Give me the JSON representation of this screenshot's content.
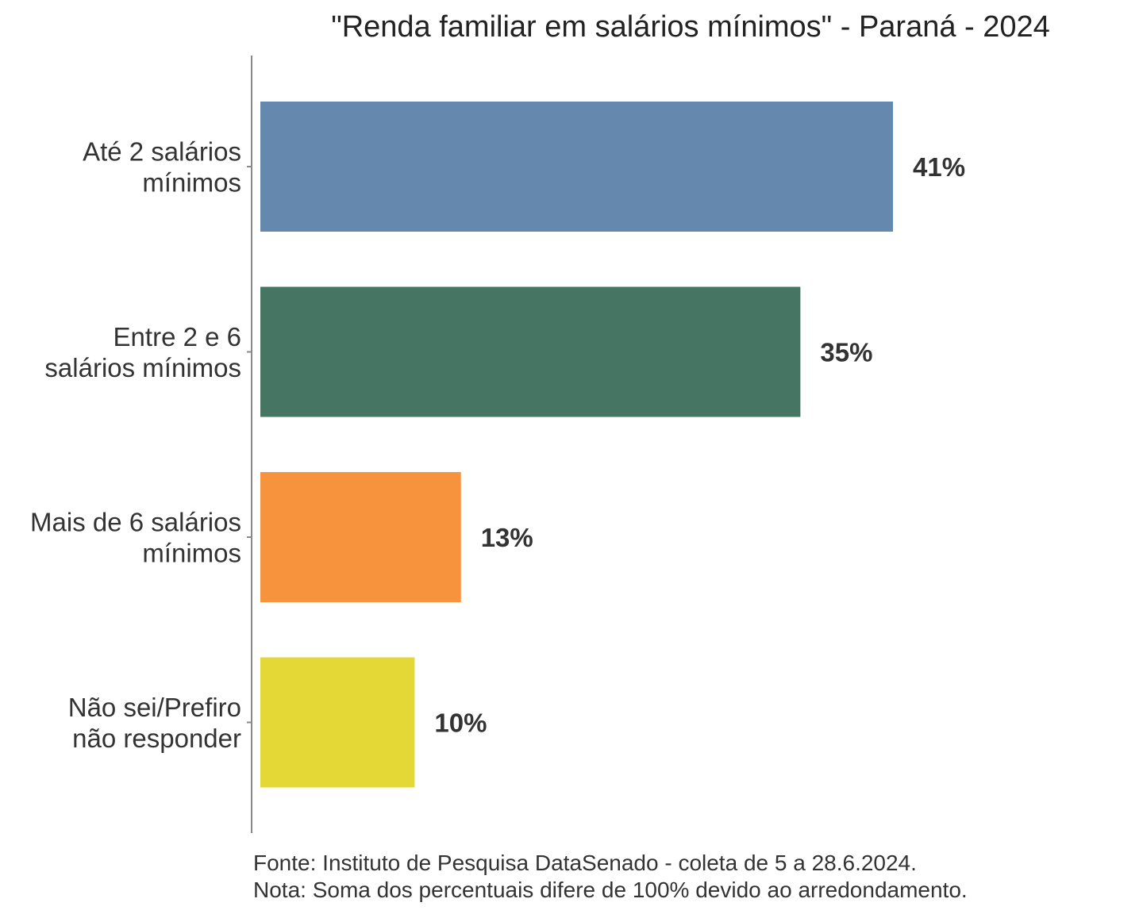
{
  "chart_data": {
    "type": "bar",
    "orientation": "horizontal",
    "title": "\"Renda familiar em salários mínimos\" - Paraná - 2024",
    "categories": [
      [
        "Até 2 salários",
        "mínimos"
      ],
      [
        "Entre 2 e 6",
        "salários mínimos"
      ],
      [
        "Mais de 6 salários",
        "mínimos"
      ],
      [
        "Não sei/Prefiro",
        "não responder"
      ]
    ],
    "values": [
      41,
      35,
      13,
      10
    ],
    "value_labels": [
      "41%",
      "35%",
      "13%",
      "10%"
    ],
    "colors": [
      "#6488AE",
      "#467563",
      "#F7923D",
      "#E3D836"
    ],
    "xlim": [
      0,
      41
    ],
    "grid": false,
    "xlabel": "",
    "ylabel": ""
  },
  "notes": [
    "Fonte: Instituto de Pesquisa DataSenado - coleta de 5 a 28.6.2024.",
    "Nota: Soma dos percentuais difere de 100% devido ao arredondamento."
  ]
}
